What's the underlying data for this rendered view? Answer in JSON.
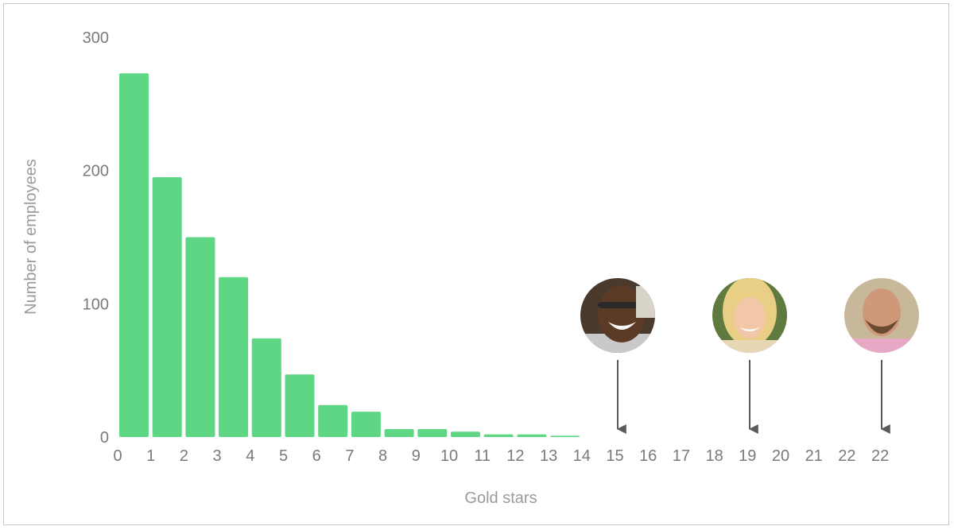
{
  "chart_data": {
    "type": "bar",
    "title": "",
    "xlabel": "Gold stars",
    "ylabel": "Number of employees",
    "ylim": [
      0,
      300
    ],
    "y_ticks": [
      0,
      100,
      200,
      300
    ],
    "x_tick_labels": [
      "0",
      "1",
      "2",
      "3",
      "4",
      "5",
      "6",
      "7",
      "8",
      "9",
      "10",
      "11",
      "12",
      "13",
      "14",
      "15",
      "16",
      "17",
      "18",
      "19",
      "20",
      "21",
      "22",
      "22"
    ],
    "categories": [
      "0",
      "1",
      "2",
      "3",
      "4",
      "5",
      "6",
      "7",
      "8",
      "9",
      "10",
      "11",
      "12",
      "13"
    ],
    "values": [
      273,
      195,
      150,
      120,
      74,
      47,
      24,
      19,
      6,
      6,
      4,
      2,
      2,
      1
    ],
    "bar_color": "#5fd684",
    "grid": false,
    "legend": "none",
    "annotations": [
      {
        "x_label": "15",
        "marker": "person-photo",
        "arrow": "down"
      },
      {
        "x_label": "19",
        "marker": "person-photo",
        "arrow": "down"
      },
      {
        "x_label": "22",
        "marker": "person-photo",
        "arrow": "down"
      }
    ]
  }
}
